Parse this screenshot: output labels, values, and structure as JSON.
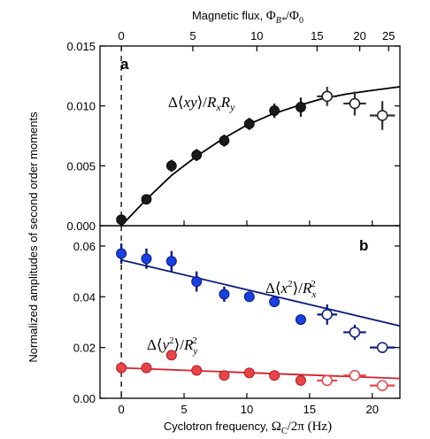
{
  "chart_data": [
    {
      "panel": "a",
      "type": "scatter",
      "ylim": [
        0.0,
        0.015
      ],
      "xlim": [
        -1.7,
        22.2
      ],
      "y_ticks": [
        "0.000",
        "0.005",
        "0.010",
        "0.015"
      ],
      "x_ticks": [
        0,
        5,
        10,
        15,
        20
      ],
      "annotation": {
        "prefix": "Δ⟨",
        "var": "xy",
        "mid": "⟩/",
        "r1": "R",
        "s1": "x",
        "r2": "R",
        "s2": "y"
      },
      "series": [
        {
          "style": "filled",
          "color": "#1a1a1a",
          "x": [
            0.0,
            2.0,
            4.0,
            6.0,
            8.2,
            10.2,
            12.2,
            14.3
          ],
          "y": [
            0.0005,
            0.0022,
            0.005,
            0.0059,
            0.0071,
            0.0085,
            0.0096,
            0.0099
          ],
          "yerr": [
            0.0002,
            0.0002,
            0.0005,
            0.0005,
            0.0005,
            0.0005,
            0.0006,
            0.0008
          ],
          "xerr": [
            0,
            0,
            0,
            0,
            0,
            0,
            0,
            0
          ]
        },
        {
          "style": "open",
          "color": "#1a1a1a",
          "x": [
            16.4,
            18.6,
            20.8
          ],
          "y": [
            0.0108,
            0.0102,
            0.0092
          ],
          "yerr": [
            0.0008,
            0.001,
            0.0012
          ],
          "xerr": [
            0.8,
            0.9,
            1.0
          ]
        }
      ],
      "fit": {
        "color": "#000000",
        "x": [
          0,
          2,
          4,
          6,
          8,
          10,
          12,
          14,
          16,
          18,
          20,
          22.2
        ],
        "y": [
          0.0,
          0.0022,
          0.0042,
          0.0058,
          0.0072,
          0.0084,
          0.0093,
          0.01,
          0.0106,
          0.011,
          0.0113,
          0.0116
        ]
      }
    },
    {
      "panel": "b",
      "type": "scatter",
      "ylim": [
        0.0,
        0.068
      ],
      "xlim": [
        -1.7,
        22.2
      ],
      "xlabel": {
        "text": "Cyclotron frequency, ",
        "math": "Ω",
        "sub": "C",
        "tail": "/2π (Hz)"
      },
      "x_ticks": [
        0,
        5,
        10,
        15,
        20
      ],
      "y_ticks": [
        "0.00",
        "0.02",
        "0.04",
        "0.06"
      ],
      "annotations": [
        {
          "prefix": "Δ⟨",
          "var": "x",
          "sup": "2",
          "mid": "⟩/",
          "r": "R",
          "rsub": "x",
          "rsup": "2"
        },
        {
          "prefix": "Δ⟨",
          "var": "y",
          "sup": "2",
          "mid": "⟩/",
          "r": "R",
          "rsub": "y",
          "rsup": "2"
        }
      ],
      "series": [
        {
          "name": "x2",
          "style": "filled",
          "color": "#1a3fe0",
          "x": [
            0.0,
            2.0,
            4.0,
            6.0,
            8.2,
            10.2,
            12.2,
            14.3
          ],
          "y": [
            0.057,
            0.055,
            0.054,
            0.046,
            0.041,
            0.04,
            0.038,
            0.031
          ],
          "yerr": [
            0.004,
            0.004,
            0.004,
            0.004,
            0.003,
            0.002,
            0.002,
            0.002
          ],
          "xerr": [
            0,
            0,
            0,
            0,
            0,
            0,
            0,
            0
          ]
        },
        {
          "name": "x2-open",
          "style": "open",
          "color": "#1a3fe0",
          "x": [
            16.4,
            18.6,
            20.8
          ],
          "y": [
            0.033,
            0.026,
            0.02
          ],
          "yerr": [
            0.004,
            0.003,
            0.002
          ],
          "xerr": [
            0.8,
            0.9,
            1.0
          ]
        },
        {
          "name": "y2",
          "style": "filled",
          "color": "#e8454a",
          "x": [
            0.0,
            2.0,
            4.0,
            6.0,
            8.2,
            10.2,
            12.2,
            14.3
          ],
          "y": [
            0.012,
            0.012,
            0.017,
            0.011,
            0.009,
            0.01,
            0.009,
            0.007
          ],
          "yerr": [
            0.002,
            0.002,
            0.0,
            0.002,
            0.001,
            0.001,
            0.001,
            0.001
          ],
          "xerr": [
            0,
            0,
            0,
            0,
            0,
            0,
            0,
            0
          ]
        },
        {
          "name": "y2-open",
          "style": "open",
          "color": "#e8454a",
          "x": [
            16.4,
            18.6,
            20.8
          ],
          "y": [
            0.007,
            0.009,
            0.005
          ],
          "yerr": [
            0.001,
            0.001,
            0.001
          ],
          "xerr": [
            0.8,
            0.9,
            1.0
          ]
        }
      ],
      "fits": [
        {
          "color": "#0a1a80",
          "x": [
            0,
            22.2
          ],
          "y": [
            0.0545,
            0.0285
          ]
        },
        {
          "color": "#d81e28",
          "x": [
            0,
            22.2
          ],
          "y": [
            0.012,
            0.0078
          ]
        }
      ]
    }
  ],
  "top_axis": {
    "label": {
      "text": "Magnetic flux, ",
      "math": "Φ",
      "sub": "B*",
      "tail": "/Φ",
      "tailsub": "0"
    },
    "ticks": [
      {
        "label": "0",
        "at_x": 0.0
      },
      {
        "label": "5",
        "at_x": 5.7
      },
      {
        "label": "10",
        "at_x": 10.8
      },
      {
        "label": "15",
        "at_x": 15.6
      },
      {
        "label": "20",
        "at_x": 19.0
      },
      {
        "label": "25",
        "at_x": 21.3
      }
    ]
  },
  "shared_ylabel": "Normalized amplitudes of second order moments"
}
